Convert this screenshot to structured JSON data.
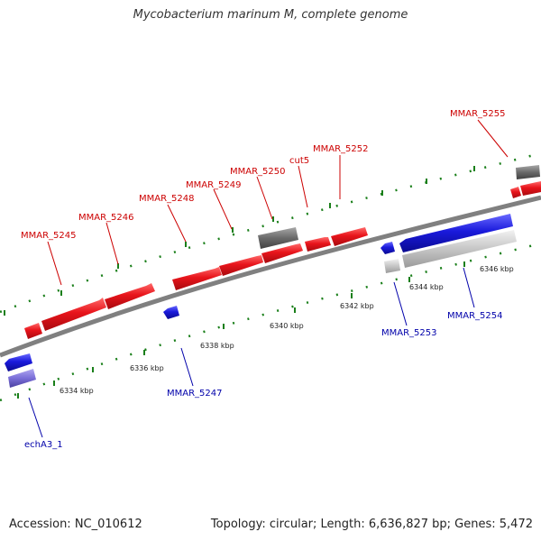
{
  "title": "Mycobacterium marinum M, complete genome",
  "footer": {
    "accession": "Accession: NC_010612",
    "summary": "Topology: circular; Length: 6,636,827 bp; Genes: 5,472"
  },
  "colors": {
    "forward_gene": "#e8141b",
    "reverse_gene": "#1a1adc",
    "forward_label": "#cc0000",
    "reverse_label": "#0000aa",
    "backbone": "#808080",
    "tick": "#1a7f1a"
  },
  "ticks": [
    "6334 kbp",
    "6336 kbp",
    "6338 kbp",
    "6340 kbp",
    "6342 kbp",
    "6344 kbp",
    "6346 kbp"
  ],
  "forward_genes": [
    "MMAR_5245",
    "MMAR_5246",
    "MMAR_5248",
    "MMAR_5249",
    "MMAR_5250",
    "cut5",
    "MMAR_5252",
    "MMAR_5255"
  ],
  "reverse_genes": [
    "echA3_1",
    "MMAR_5247",
    "MMAR_5253",
    "MMAR_5254"
  ]
}
